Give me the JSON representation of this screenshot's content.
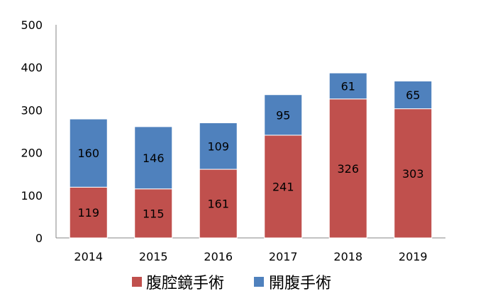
{
  "chart_data": {
    "type": "bar",
    "stacked": true,
    "categories": [
      "2014",
      "2015",
      "2016",
      "2017",
      "2018",
      "2019"
    ],
    "series": [
      {
        "name": "腹腔鏡手術",
        "color": "#C0504D",
        "values": [
          119,
          115,
          161,
          241,
          326,
          303
        ]
      },
      {
        "name": "開腹手術",
        "color": "#4F81BD",
        "values": [
          160,
          146,
          109,
          95,
          61,
          65
        ]
      }
    ],
    "yticks": [
      "0",
      "100",
      "200",
      "300",
      "400",
      "500"
    ],
    "ylim": [
      0,
      500
    ],
    "grid": false,
    "legend_position": "bottom",
    "title": "",
    "xlabel": "",
    "ylabel": ""
  }
}
